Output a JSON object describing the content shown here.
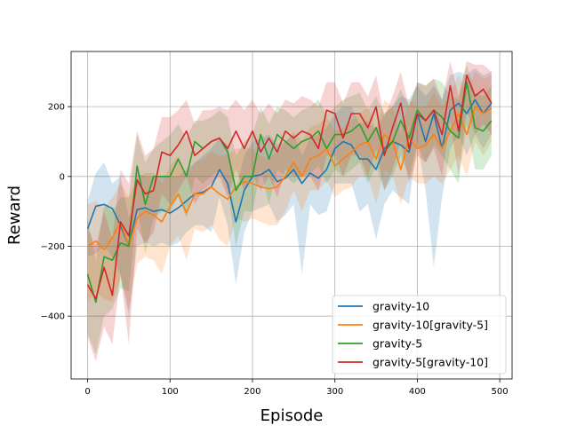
{
  "chart_data": {
    "type": "line",
    "title": "",
    "xlabel": "Episode",
    "ylabel": "Reward",
    "xlim": [
      -20,
      515
    ],
    "ylim": [
      -580,
      358
    ],
    "grid": true,
    "legend_position": "lower-right",
    "xticks": [
      0,
      100,
      200,
      300,
      400,
      500
    ],
    "yticks": [
      -400,
      -200,
      0,
      200
    ],
    "x": [
      0,
      10,
      20,
      30,
      40,
      50,
      60,
      70,
      80,
      90,
      100,
      110,
      120,
      130,
      140,
      150,
      160,
      170,
      180,
      190,
      200,
      210,
      220,
      230,
      240,
      250,
      260,
      270,
      280,
      290,
      300,
      310,
      320,
      330,
      340,
      350,
      360,
      370,
      380,
      390,
      400,
      410,
      420,
      430,
      440,
      450,
      460,
      470,
      480,
      490
    ],
    "series": [
      {
        "name": "gravity-10",
        "color": "#1f77b4",
        "values": [
          -150,
          -85,
          -80,
          -92,
          -140,
          -200,
          -95,
          -90,
          -100,
          -95,
          -105,
          -90,
          -70,
          -50,
          -45,
          -30,
          20,
          -20,
          -130,
          -40,
          0,
          5,
          20,
          -15,
          -5,
          20,
          -20,
          10,
          -5,
          20,
          80,
          100,
          90,
          50,
          50,
          20,
          80,
          100,
          90,
          70,
          180,
          100,
          180,
          80,
          190,
          210,
          180,
          220,
          180,
          210
        ],
        "band": [
          [
            -230,
            -70
          ],
          [
            -220,
            10
          ],
          [
            -200,
            40
          ],
          [
            -230,
            -20
          ],
          [
            -280,
            0
          ],
          [
            -400,
            -120
          ],
          [
            -200,
            10
          ],
          [
            -190,
            0
          ],
          [
            -200,
            0
          ],
          [
            -190,
            0
          ],
          [
            -200,
            0
          ],
          [
            -190,
            0
          ],
          [
            -160,
            20
          ],
          [
            -140,
            40
          ],
          [
            -140,
            60
          ],
          [
            -160,
            80
          ],
          [
            -60,
            110
          ],
          [
            -140,
            90
          ],
          [
            -310,
            -40
          ],
          [
            -160,
            60
          ],
          [
            -100,
            100
          ],
          [
            -90,
            110
          ],
          [
            -80,
            120
          ],
          [
            -130,
            90
          ],
          [
            -110,
            100
          ],
          [
            -80,
            120
          ],
          [
            -280,
            60
          ],
          [
            -80,
            110
          ],
          [
            -110,
            120
          ],
          [
            -100,
            140
          ],
          [
            -20,
            180
          ],
          [
            -20,
            200
          ],
          [
            -20,
            200
          ],
          [
            -100,
            150
          ],
          [
            -80,
            160
          ],
          [
            -180,
            130
          ],
          [
            -80,
            180
          ],
          [
            -40,
            200
          ],
          [
            -60,
            230
          ],
          [
            -80,
            220
          ],
          [
            100,
            260
          ],
          [
            -40,
            230
          ],
          [
            -260,
            260
          ],
          [
            -60,
            220
          ],
          [
            80,
            290
          ],
          [
            120,
            300
          ],
          [
            60,
            290
          ],
          [
            120,
            310
          ],
          [
            80,
            290
          ],
          [
            120,
            300
          ]
        ]
      },
      {
        "name": "gravity-10[gravity-5]",
        "color": "#ff7f0e",
        "values": [
          -200,
          -185,
          -210,
          -175,
          -130,
          -200,
          -120,
          -100,
          -110,
          -130,
          -85,
          -50,
          -105,
          -50,
          -50,
          -30,
          -50,
          -65,
          -30,
          -15,
          -20,
          -30,
          -35,
          -30,
          0,
          40,
          0,
          50,
          60,
          80,
          30,
          50,
          70,
          90,
          100,
          50,
          120,
          100,
          20,
          110,
          80,
          90,
          120,
          80,
          130,
          180,
          120,
          200,
          180,
          195
        ],
        "band": [
          [
            -360,
            -80
          ],
          [
            -330,
            -70
          ],
          [
            -350,
            -90
          ],
          [
            -360,
            -60
          ],
          [
            -290,
            -20
          ],
          [
            -380,
            -60
          ],
          [
            -250,
            -10
          ],
          [
            -230,
            10
          ],
          [
            -240,
            10
          ],
          [
            -280,
            -20
          ],
          [
            -200,
            30
          ],
          [
            -170,
            60
          ],
          [
            -240,
            0
          ],
          [
            -150,
            40
          ],
          [
            -160,
            50
          ],
          [
            -140,
            70
          ],
          [
            -180,
            60
          ],
          [
            -200,
            60
          ],
          [
            -120,
            80
          ],
          [
            -130,
            80
          ],
          [
            -120,
            80
          ],
          [
            -130,
            60
          ],
          [
            -140,
            50
          ],
          [
            -140,
            70
          ],
          [
            -100,
            100
          ],
          [
            -40,
            130
          ],
          [
            -100,
            100
          ],
          [
            -40,
            140
          ],
          [
            -40,
            150
          ],
          [
            -10,
            170
          ],
          [
            -60,
            130
          ],
          [
            -40,
            140
          ],
          [
            -30,
            160
          ],
          [
            0,
            180
          ],
          [
            0,
            200
          ],
          [
            -80,
            140
          ],
          [
            20,
            220
          ],
          [
            0,
            200
          ],
          [
            -80,
            120
          ],
          [
            0,
            220
          ],
          [
            -20,
            200
          ],
          [
            -20,
            200
          ],
          [
            0,
            240
          ],
          [
            -20,
            200
          ],
          [
            20,
            240
          ],
          [
            60,
            290
          ],
          [
            0,
            240
          ],
          [
            100,
            300
          ],
          [
            60,
            280
          ],
          [
            100,
            290
          ]
        ]
      },
      {
        "name": "gravity-5",
        "color": "#2ca02c",
        "values": [
          -280,
          -360,
          -230,
          -240,
          -190,
          -200,
          30,
          -80,
          0,
          0,
          0,
          50,
          0,
          100,
          80,
          100,
          110,
          70,
          -40,
          0,
          0,
          120,
          50,
          120,
          100,
          80,
          100,
          110,
          130,
          80,
          120,
          120,
          130,
          150,
          100,
          140,
          70,
          100,
          160,
          110,
          190,
          160,
          190,
          170,
          130,
          110,
          270,
          140,
          130,
          160
        ],
        "band": [
          [
            -450,
            -120
          ],
          [
            -510,
            -240
          ],
          [
            -400,
            -80
          ],
          [
            -380,
            -100
          ],
          [
            -320,
            -60
          ],
          [
            -330,
            -60
          ],
          [
            -90,
            120
          ],
          [
            -220,
            40
          ],
          [
            -120,
            80
          ],
          [
            -100,
            100
          ],
          [
            -100,
            120
          ],
          [
            -60,
            150
          ],
          [
            -120,
            110
          ],
          [
            0,
            160
          ],
          [
            -20,
            160
          ],
          [
            0,
            170
          ],
          [
            20,
            190
          ],
          [
            -40,
            170
          ],
          [
            -200,
            60
          ],
          [
            -100,
            100
          ],
          [
            -100,
            120
          ],
          [
            20,
            200
          ],
          [
            -80,
            150
          ],
          [
            20,
            200
          ],
          [
            0,
            190
          ],
          [
            -20,
            170
          ],
          [
            0,
            190
          ],
          [
            10,
            200
          ],
          [
            30,
            220
          ],
          [
            -20,
            180
          ],
          [
            20,
            200
          ],
          [
            0,
            220
          ],
          [
            20,
            230
          ],
          [
            40,
            240
          ],
          [
            -20,
            190
          ],
          [
            30,
            230
          ],
          [
            -40,
            180
          ],
          [
            0,
            200
          ],
          [
            60,
            250
          ],
          [
            0,
            200
          ],
          [
            90,
            270
          ],
          [
            40,
            260
          ],
          [
            90,
            280
          ],
          [
            60,
            270
          ],
          [
            20,
            230
          ],
          [
            -20,
            220
          ],
          [
            150,
            320
          ],
          [
            20,
            240
          ],
          [
            20,
            230
          ],
          [
            60,
            260
          ]
        ]
      },
      {
        "name": "gravity-5[gravity-10]",
        "color": "#d62728",
        "values": [
          -310,
          -350,
          -260,
          -340,
          -130,
          -170,
          -10,
          -50,
          -40,
          70,
          60,
          90,
          130,
          60,
          80,
          100,
          110,
          80,
          130,
          80,
          130,
          70,
          110,
          70,
          130,
          110,
          130,
          120,
          80,
          190,
          180,
          110,
          180,
          180,
          140,
          200,
          60,
          140,
          210,
          80,
          180,
          160,
          190,
          120,
          260,
          130,
          290,
          230,
          250,
          210
        ],
        "band": [
          [
            -460,
            -150
          ],
          [
            -530,
            -200
          ],
          [
            -430,
            -100
          ],
          [
            -480,
            -180
          ],
          [
            -280,
            20
          ],
          [
            -480,
            -20
          ],
          [
            -150,
            130
          ],
          [
            -190,
            60
          ],
          [
            -160,
            80
          ],
          [
            -50,
            170
          ],
          [
            -80,
            170
          ],
          [
            -40,
            190
          ],
          [
            0,
            220
          ],
          [
            -80,
            150
          ],
          [
            -40,
            190
          ],
          [
            -20,
            190
          ],
          [
            0,
            200
          ],
          [
            -60,
            190
          ],
          [
            20,
            220
          ],
          [
            -40,
            190
          ],
          [
            0,
            220
          ],
          [
            -40,
            180
          ],
          [
            0,
            210
          ],
          [
            -60,
            180
          ],
          [
            20,
            220
          ],
          [
            0,
            210
          ],
          [
            0,
            230
          ],
          [
            0,
            220
          ],
          [
            -40,
            200
          ],
          [
            60,
            270
          ],
          [
            60,
            270
          ],
          [
            0,
            210
          ],
          [
            60,
            270
          ],
          [
            60,
            270
          ],
          [
            0,
            230
          ],
          [
            80,
            290
          ],
          [
            -40,
            170
          ],
          [
            20,
            230
          ],
          [
            100,
            300
          ],
          [
            -20,
            200
          ],
          [
            60,
            270
          ],
          [
            40,
            260
          ],
          [
            80,
            280
          ],
          [
            0,
            220
          ],
          [
            160,
            330
          ],
          [
            0,
            230
          ],
          [
            190,
            330
          ],
          [
            120,
            320
          ],
          [
            150,
            320
          ],
          [
            120,
            300
          ]
        ]
      }
    ]
  }
}
